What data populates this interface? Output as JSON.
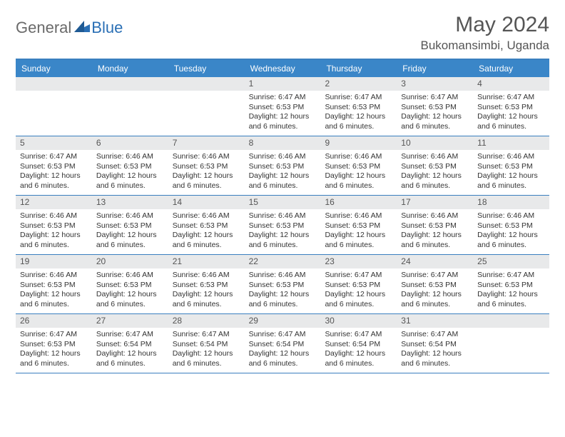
{
  "brand": {
    "text1": "General",
    "text2": "Blue"
  },
  "title": "May 2024",
  "location": "Bukomansimbi, Uganda",
  "colors": {
    "header_bg": "#3a86c8",
    "border": "#3a7fbf",
    "daynum_bg": "#e8e9ea",
    "text": "#333333",
    "title_text": "#555555",
    "brand_gray": "#6a6a6a",
    "brand_blue": "#2a6fb5"
  },
  "day_names": [
    "Sunday",
    "Monday",
    "Tuesday",
    "Wednesday",
    "Thursday",
    "Friday",
    "Saturday"
  ],
  "weeks": [
    [
      {
        "n": "",
        "empty": true
      },
      {
        "n": "",
        "empty": true
      },
      {
        "n": "",
        "empty": true
      },
      {
        "n": "1",
        "sr": "Sunrise: 6:47 AM",
        "ss": "Sunset: 6:53 PM",
        "d1": "Daylight: 12 hours",
        "d2": "and 6 minutes."
      },
      {
        "n": "2",
        "sr": "Sunrise: 6:47 AM",
        "ss": "Sunset: 6:53 PM",
        "d1": "Daylight: 12 hours",
        "d2": "and 6 minutes."
      },
      {
        "n": "3",
        "sr": "Sunrise: 6:47 AM",
        "ss": "Sunset: 6:53 PM",
        "d1": "Daylight: 12 hours",
        "d2": "and 6 minutes."
      },
      {
        "n": "4",
        "sr": "Sunrise: 6:47 AM",
        "ss": "Sunset: 6:53 PM",
        "d1": "Daylight: 12 hours",
        "d2": "and 6 minutes."
      }
    ],
    [
      {
        "n": "5",
        "sr": "Sunrise: 6:47 AM",
        "ss": "Sunset: 6:53 PM",
        "d1": "Daylight: 12 hours",
        "d2": "and 6 minutes."
      },
      {
        "n": "6",
        "sr": "Sunrise: 6:46 AM",
        "ss": "Sunset: 6:53 PM",
        "d1": "Daylight: 12 hours",
        "d2": "and 6 minutes."
      },
      {
        "n": "7",
        "sr": "Sunrise: 6:46 AM",
        "ss": "Sunset: 6:53 PM",
        "d1": "Daylight: 12 hours",
        "d2": "and 6 minutes."
      },
      {
        "n": "8",
        "sr": "Sunrise: 6:46 AM",
        "ss": "Sunset: 6:53 PM",
        "d1": "Daylight: 12 hours",
        "d2": "and 6 minutes."
      },
      {
        "n": "9",
        "sr": "Sunrise: 6:46 AM",
        "ss": "Sunset: 6:53 PM",
        "d1": "Daylight: 12 hours",
        "d2": "and 6 minutes."
      },
      {
        "n": "10",
        "sr": "Sunrise: 6:46 AM",
        "ss": "Sunset: 6:53 PM",
        "d1": "Daylight: 12 hours",
        "d2": "and 6 minutes."
      },
      {
        "n": "11",
        "sr": "Sunrise: 6:46 AM",
        "ss": "Sunset: 6:53 PM",
        "d1": "Daylight: 12 hours",
        "d2": "and 6 minutes."
      }
    ],
    [
      {
        "n": "12",
        "sr": "Sunrise: 6:46 AM",
        "ss": "Sunset: 6:53 PM",
        "d1": "Daylight: 12 hours",
        "d2": "and 6 minutes."
      },
      {
        "n": "13",
        "sr": "Sunrise: 6:46 AM",
        "ss": "Sunset: 6:53 PM",
        "d1": "Daylight: 12 hours",
        "d2": "and 6 minutes."
      },
      {
        "n": "14",
        "sr": "Sunrise: 6:46 AM",
        "ss": "Sunset: 6:53 PM",
        "d1": "Daylight: 12 hours",
        "d2": "and 6 minutes."
      },
      {
        "n": "15",
        "sr": "Sunrise: 6:46 AM",
        "ss": "Sunset: 6:53 PM",
        "d1": "Daylight: 12 hours",
        "d2": "and 6 minutes."
      },
      {
        "n": "16",
        "sr": "Sunrise: 6:46 AM",
        "ss": "Sunset: 6:53 PM",
        "d1": "Daylight: 12 hours",
        "d2": "and 6 minutes."
      },
      {
        "n": "17",
        "sr": "Sunrise: 6:46 AM",
        "ss": "Sunset: 6:53 PM",
        "d1": "Daylight: 12 hours",
        "d2": "and 6 minutes."
      },
      {
        "n": "18",
        "sr": "Sunrise: 6:46 AM",
        "ss": "Sunset: 6:53 PM",
        "d1": "Daylight: 12 hours",
        "d2": "and 6 minutes."
      }
    ],
    [
      {
        "n": "19",
        "sr": "Sunrise: 6:46 AM",
        "ss": "Sunset: 6:53 PM",
        "d1": "Daylight: 12 hours",
        "d2": "and 6 minutes."
      },
      {
        "n": "20",
        "sr": "Sunrise: 6:46 AM",
        "ss": "Sunset: 6:53 PM",
        "d1": "Daylight: 12 hours",
        "d2": "and 6 minutes."
      },
      {
        "n": "21",
        "sr": "Sunrise: 6:46 AM",
        "ss": "Sunset: 6:53 PM",
        "d1": "Daylight: 12 hours",
        "d2": "and 6 minutes."
      },
      {
        "n": "22",
        "sr": "Sunrise: 6:46 AM",
        "ss": "Sunset: 6:53 PM",
        "d1": "Daylight: 12 hours",
        "d2": "and 6 minutes."
      },
      {
        "n": "23",
        "sr": "Sunrise: 6:47 AM",
        "ss": "Sunset: 6:53 PM",
        "d1": "Daylight: 12 hours",
        "d2": "and 6 minutes."
      },
      {
        "n": "24",
        "sr": "Sunrise: 6:47 AM",
        "ss": "Sunset: 6:53 PM",
        "d1": "Daylight: 12 hours",
        "d2": "and 6 minutes."
      },
      {
        "n": "25",
        "sr": "Sunrise: 6:47 AM",
        "ss": "Sunset: 6:53 PM",
        "d1": "Daylight: 12 hours",
        "d2": "and 6 minutes."
      }
    ],
    [
      {
        "n": "26",
        "sr": "Sunrise: 6:47 AM",
        "ss": "Sunset: 6:53 PM",
        "d1": "Daylight: 12 hours",
        "d2": "and 6 minutes."
      },
      {
        "n": "27",
        "sr": "Sunrise: 6:47 AM",
        "ss": "Sunset: 6:54 PM",
        "d1": "Daylight: 12 hours",
        "d2": "and 6 minutes."
      },
      {
        "n": "28",
        "sr": "Sunrise: 6:47 AM",
        "ss": "Sunset: 6:54 PM",
        "d1": "Daylight: 12 hours",
        "d2": "and 6 minutes."
      },
      {
        "n": "29",
        "sr": "Sunrise: 6:47 AM",
        "ss": "Sunset: 6:54 PM",
        "d1": "Daylight: 12 hours",
        "d2": "and 6 minutes."
      },
      {
        "n": "30",
        "sr": "Sunrise: 6:47 AM",
        "ss": "Sunset: 6:54 PM",
        "d1": "Daylight: 12 hours",
        "d2": "and 6 minutes."
      },
      {
        "n": "31",
        "sr": "Sunrise: 6:47 AM",
        "ss": "Sunset: 6:54 PM",
        "d1": "Daylight: 12 hours",
        "d2": "and 6 minutes."
      },
      {
        "n": "",
        "empty": true
      }
    ]
  ]
}
